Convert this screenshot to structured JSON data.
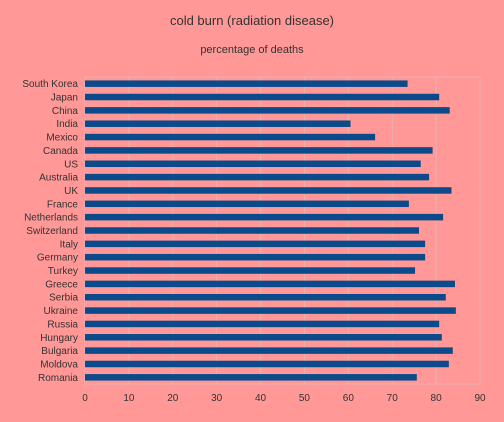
{
  "chart_data": {
    "type": "bar",
    "orientation": "horizontal",
    "title": "cold burn (radiation disease)",
    "subtitle": "percentage of deaths",
    "xlabel": "",
    "ylabel": "",
    "xlim": [
      0,
      90
    ],
    "xticks": [
      0,
      10,
      20,
      30,
      40,
      50,
      60,
      70,
      80,
      90
    ],
    "grid": true,
    "bar_color": "#0b4b8c",
    "grid_color": "#e8b2b0",
    "background_color": "#ff9896",
    "categories": [
      "South Korea",
      "Japan",
      "China",
      "India",
      "Mexico",
      "Canada",
      "US",
      "Australia",
      "UK",
      "France",
      "Netherlands",
      "Switzerland",
      "Italy",
      "Germany",
      "Turkey",
      "Greece",
      "Serbia",
      "Ukraine",
      "Russia",
      "Hungary",
      "Bulgaria",
      "Moldova",
      "Romania"
    ],
    "values": [
      73.5,
      80.7,
      83.1,
      60.5,
      66.1,
      79.2,
      76.5,
      78.4,
      83.5,
      73.8,
      81.6,
      76.1,
      77.5,
      77.5,
      75.2,
      84.3,
      82.2,
      84.5,
      80.7,
      81.3,
      83.8,
      82.9,
      75.6
    ]
  }
}
